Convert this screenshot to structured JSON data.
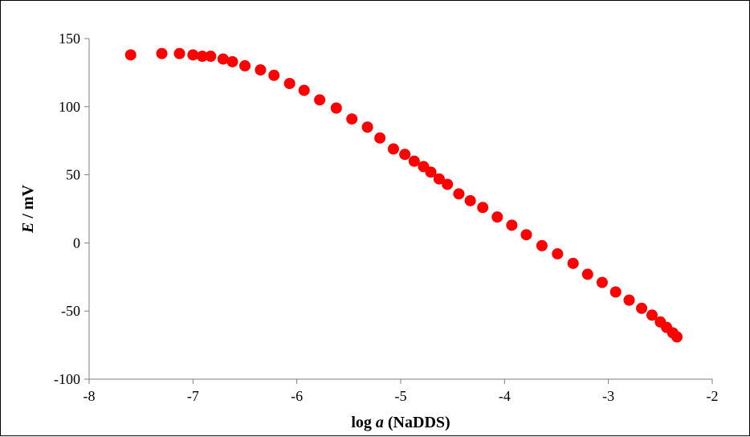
{
  "chart_data": {
    "type": "scatter",
    "xlabel_parts": [
      "log ",
      "a",
      " (NaDDS)"
    ],
    "ylabel_parts": [
      "E",
      " / mV"
    ],
    "xlim": [
      -8,
      -2
    ],
    "ylim": [
      -100,
      150
    ],
    "xticks": [
      -8,
      -7,
      -6,
      -5,
      -4,
      -3,
      -2
    ],
    "yticks": [
      -100,
      -50,
      0,
      50,
      100,
      150
    ],
    "grid": false,
    "legend": "none",
    "marker_color": "#ff0000",
    "series": [
      {
        "x": [
          -7.6,
          -7.3,
          -7.13,
          -7.0,
          -6.91,
          -6.83,
          -6.71,
          -6.62,
          -6.5,
          -6.35,
          -6.22,
          -6.07,
          -5.93,
          -5.78,
          -5.62,
          -5.47,
          -5.32,
          -5.2,
          -5.07,
          -4.96,
          -4.87,
          -4.78,
          -4.71,
          -4.63,
          -4.55,
          -4.44,
          -4.33,
          -4.21,
          -4.07,
          -3.93,
          -3.79,
          -3.64,
          -3.49,
          -3.34,
          -3.2,
          -3.06,
          -2.93,
          -2.8,
          -2.68,
          -2.58,
          -2.5,
          -2.44,
          -2.38,
          -2.34
        ],
        "y": [
          138,
          139,
          139,
          138,
          137,
          137,
          135,
          133,
          130,
          127,
          123,
          117,
          112,
          105,
          99,
          91,
          85,
          77,
          69,
          65,
          60,
          56,
          52,
          47,
          43,
          36,
          31,
          26,
          19,
          13,
          6,
          -2,
          -8,
          -15,
          -23,
          -29,
          -36,
          -42,
          -48,
          -53,
          -58,
          -62,
          -66,
          -69
        ]
      }
    ]
  }
}
